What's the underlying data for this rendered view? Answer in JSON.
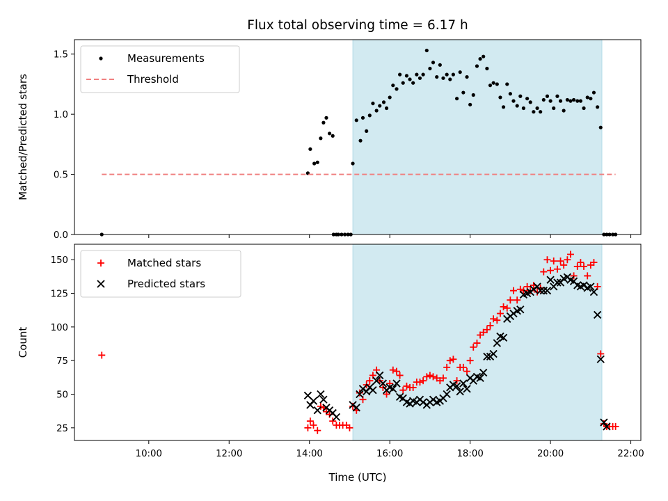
{
  "chart_data": {
    "type": "scatter",
    "title": "Flux total observing time = 6.17 h",
    "xlabel": "Time (UTC)",
    "x_unit": "hours UTC",
    "xlim": [
      8.15,
      22.25
    ],
    "x_ticks": [
      10,
      12,
      14,
      16,
      18,
      20,
      22
    ],
    "x_tick_labels": [
      "10:00",
      "12:00",
      "14:00",
      "16:00",
      "18:00",
      "20:00",
      "22:00"
    ],
    "shaded_interval": {
      "x_start": 15.08,
      "x_end": 21.28,
      "color": "#add8e6"
    },
    "panels": [
      {
        "name": "ratio",
        "ylabel": "Matched/Predicted stars",
        "ylim": [
          0,
          1.62
        ],
        "y_ticks": [
          0.0,
          0.5,
          1.0,
          1.5
        ],
        "y_tick_labels": [
          "0.0",
          "0.5",
          "1.0",
          "1.5"
        ],
        "legend": {
          "location": "upper left",
          "entries": [
            "Measurements",
            "Threshold"
          ]
        },
        "series": [
          {
            "name": "Measurements",
            "marker": "dot",
            "color": "#000000",
            "x": [
              8.83,
              13.96,
              14.02,
              14.12,
              14.2,
              14.28,
              14.35,
              14.42,
              14.5,
              14.58,
              14.67,
              14.6,
              14.72,
              14.8,
              14.88,
              14.96,
              15.03,
              15.08,
              15.17,
              15.27,
              15.33,
              15.42,
              15.5,
              15.58,
              15.67,
              15.75,
              15.85,
              15.92,
              16.0,
              16.08,
              16.17,
              16.25,
              16.33,
              16.42,
              16.5,
              16.58,
              16.67,
              16.75,
              16.83,
              16.92,
              17.0,
              17.08,
              17.17,
              17.25,
              17.33,
              17.42,
              17.5,
              17.58,
              17.67,
              17.75,
              17.83,
              17.92,
              18.0,
              18.08,
              18.17,
              18.25,
              18.33,
              18.42,
              18.5,
              18.58,
              18.67,
              18.75,
              18.83,
              18.92,
              19.0,
              19.08,
              19.17,
              19.25,
              19.33,
              19.42,
              19.5,
              19.58,
              19.67,
              19.75,
              19.83,
              19.92,
              20.0,
              20.08,
              20.17,
              20.25,
              20.33,
              20.42,
              20.5,
              20.58,
              20.67,
              20.75,
              20.83,
              20.92,
              21.0,
              21.08,
              21.17,
              21.25,
              21.33,
              21.4,
              21.47,
              21.55,
              21.62
            ],
            "y": [
              0.0,
              0.51,
              0.71,
              0.59,
              0.6,
              0.8,
              0.93,
              0.97,
              0.84,
              0.82,
              0.0,
              0.0,
              0.0,
              0.0,
              0.0,
              0.0,
              0.0,
              0.59,
              0.95,
              0.78,
              0.97,
              0.86,
              0.99,
              1.09,
              1.03,
              1.07,
              1.1,
              1.05,
              1.14,
              1.24,
              1.21,
              1.33,
              1.26,
              1.32,
              1.29,
              1.26,
              1.33,
              1.3,
              1.33,
              1.53,
              1.38,
              1.43,
              1.31,
              1.41,
              1.3,
              1.33,
              1.29,
              1.33,
              1.13,
              1.35,
              1.18,
              1.31,
              1.08,
              1.16,
              1.4,
              1.46,
              1.48,
              1.38,
              1.24,
              1.26,
              1.25,
              1.14,
              1.06,
              1.25,
              1.17,
              1.11,
              1.07,
              1.15,
              1.05,
              1.13,
              1.1,
              1.02,
              1.05,
              1.02,
              1.12,
              1.15,
              1.11,
              1.05,
              1.15,
              1.11,
              1.03,
              1.12,
              1.11,
              1.12,
              1.11,
              1.11,
              1.05,
              1.14,
              1.13,
              1.18,
              1.06,
              0.89,
              0.0,
              0.0,
              0.0,
              0.0,
              0.0
            ]
          },
          {
            "name": "Threshold",
            "style": "dashed-line",
            "color": "#f08080",
            "x": [
              8.83,
              21.62
            ],
            "y": [
              0.5,
              0.5
            ]
          }
        ]
      },
      {
        "name": "counts",
        "ylabel": "Count",
        "ylim": [
          15.6,
          161.5
        ],
        "y_ticks": [
          25,
          50,
          75,
          100,
          125,
          150
        ],
        "y_tick_labels": [
          "25",
          "50",
          "75",
          "100",
          "125",
          "150"
        ],
        "legend": {
          "location": "upper left",
          "entries": [
            "Matched stars",
            "Predicted stars"
          ]
        },
        "series": [
          {
            "name": "Matched stars",
            "marker": "plus",
            "color": "#ff0000",
            "x": [
              8.83,
              13.96,
              14.02,
              14.1,
              14.2,
              14.28,
              14.35,
              14.42,
              14.5,
              14.58,
              14.67,
              14.75,
              14.83,
              14.92,
              15.0,
              15.08,
              15.17,
              15.25,
              15.33,
              15.42,
              15.5,
              15.58,
              15.67,
              15.75,
              15.83,
              15.92,
              16.0,
              16.08,
              16.17,
              16.25,
              16.33,
              16.42,
              16.5,
              16.58,
              16.67,
              16.75,
              16.83,
              16.92,
              17.0,
              17.08,
              17.17,
              17.25,
              17.33,
              17.42,
              17.5,
              17.58,
              17.67,
              17.75,
              17.83,
              17.92,
              18.0,
              18.08,
              18.17,
              18.25,
              18.33,
              18.42,
              18.5,
              18.58,
              18.67,
              18.75,
              18.83,
              18.92,
              19.0,
              19.08,
              19.17,
              19.25,
              19.33,
              19.42,
              19.5,
              19.58,
              19.67,
              19.75,
              19.83,
              19.92,
              20.0,
              20.08,
              20.17,
              20.25,
              20.33,
              20.42,
              20.5,
              20.58,
              20.67,
              20.75,
              20.83,
              20.92,
              21.0,
              21.08,
              21.17,
              21.25,
              21.33,
              21.4,
              21.47,
              21.55,
              21.62
            ],
            "y": [
              79,
              25,
              30,
              27,
              23,
              41,
              40,
              37,
              35,
              30,
              27,
              27,
              27,
              27,
              25,
              41,
              38,
              51,
              46,
              57,
              60,
              64,
              68,
              60,
              55,
              50,
              58,
              68,
              67,
              64,
              53,
              56,
              55,
              55,
              59,
              59,
              60,
              63,
              64,
              63,
              62,
              60,
              62,
              70,
              75,
              76,
              60,
              70,
              70,
              67,
              75,
              85,
              88,
              94,
              96,
              98,
              101,
              106,
              105,
              110,
              115,
              114,
              120,
              127,
              120,
              128,
              127,
              130,
              127,
              131,
              126,
              129,
              141,
              150,
              142,
              149,
              143,
              149,
              146,
              150,
              154,
              138,
              145,
              148,
              145,
              138,
              146,
              148,
              130,
              80,
              28,
              26,
              26,
              26,
              26
            ]
          },
          {
            "name": "Predicted stars",
            "marker": "x",
            "color": "#000000",
            "x": [
              13.96,
              14.02,
              14.1,
              14.2,
              14.28,
              14.35,
              14.42,
              14.5,
              14.58,
              14.67,
              15.08,
              15.17,
              15.25,
              15.33,
              15.42,
              15.5,
              15.58,
              15.67,
              15.75,
              15.83,
              15.92,
              16.0,
              16.08,
              16.17,
              16.25,
              16.33,
              16.42,
              16.5,
              16.58,
              16.67,
              16.75,
              16.83,
              16.92,
              17.0,
              17.08,
              17.17,
              17.25,
              17.33,
              17.42,
              17.5,
              17.58,
              17.67,
              17.75,
              17.83,
              17.92,
              18.0,
              18.08,
              18.17,
              18.25,
              18.33,
              18.42,
              18.5,
              18.58,
              18.67,
              18.75,
              18.83,
              18.92,
              19.0,
              19.08,
              19.17,
              19.25,
              19.33,
              19.42,
              19.5,
              19.58,
              19.67,
              19.75,
              19.83,
              19.92,
              20.0,
              20.08,
              20.17,
              20.25,
              20.33,
              20.42,
              20.5,
              20.58,
              20.67,
              20.75,
              20.83,
              20.92,
              21.0,
              21.08,
              21.17,
              21.25,
              21.33,
              21.4
            ],
            "y": [
              49,
              42,
              45,
              38,
              50,
              46,
              40,
              38,
              36,
              33,
              42,
              40,
              50,
              54,
              52,
              55,
              53,
              60,
              64,
              58,
              53,
              55,
              54,
              58,
              48,
              47,
              44,
              43,
              45,
              44,
              46,
              44,
              42,
              44,
              46,
              44,
              45,
              47,
              50,
              55,
              57,
              56,
              52,
              58,
              54,
              62,
              60,
              63,
              62,
              66,
              78,
              78,
              80,
              88,
              93,
              92,
              106,
              108,
              110,
              112,
              113,
              124,
              125,
              126,
              128,
              130,
              127,
              127,
              127,
              135,
              130,
              133,
              133,
              136,
              137,
              135,
              134,
              131,
              130,
              131,
              129,
              130,
              126,
              109,
              76,
              29,
              26
            ]
          }
        ]
      }
    ]
  }
}
